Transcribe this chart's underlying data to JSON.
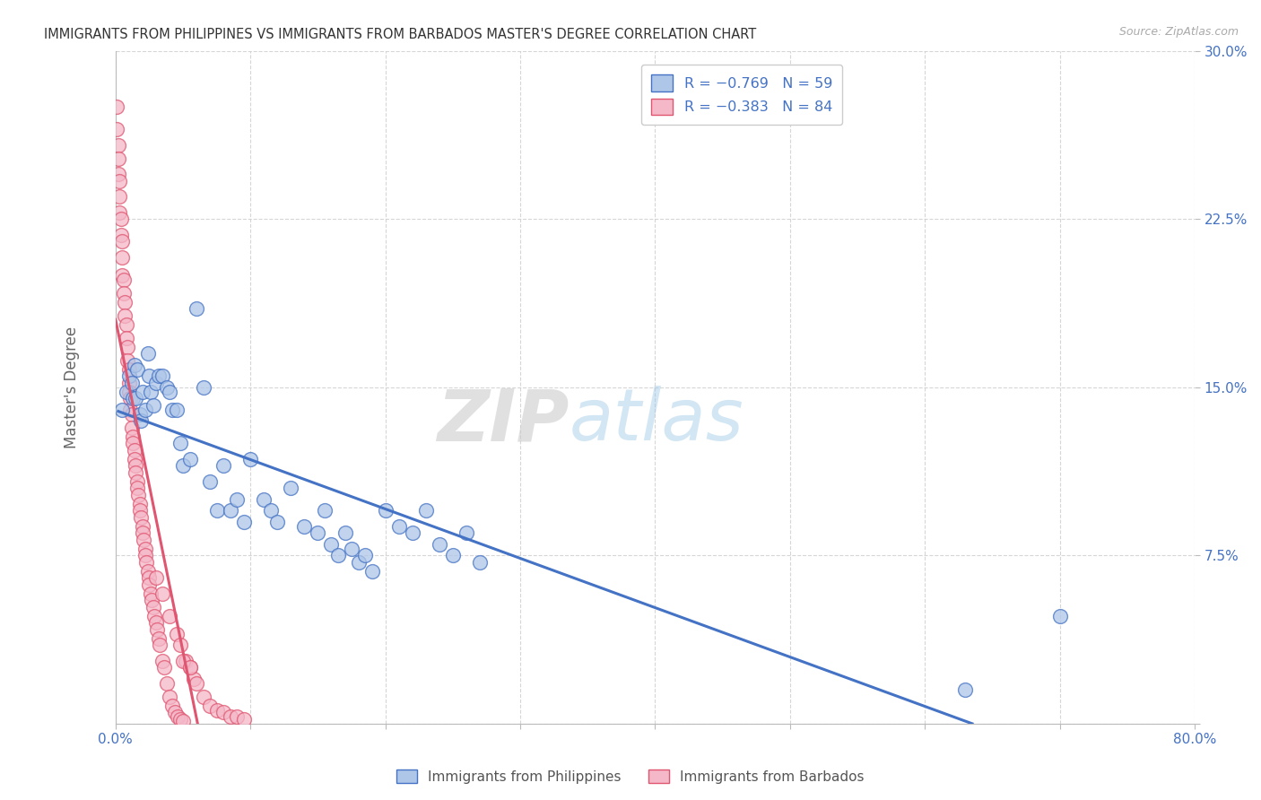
{
  "title": "IMMIGRANTS FROM PHILIPPINES VS IMMIGRANTS FROM BARBADOS MASTER'S DEGREE CORRELATION CHART",
  "source": "Source: ZipAtlas.com",
  "ylabel": "Master's Degree",
  "xlim": [
    0.0,
    0.8
  ],
  "ylim": [
    0.0,
    0.3
  ],
  "philippines_color": "#aec6e8",
  "philippines_edge_color": "#4472c4",
  "barbados_color": "#f4b8c8",
  "barbados_edge_color": "#e05570",
  "watermark_zip": "ZIP",
  "watermark_atlas": "atlas",
  "philippines_x": [
    0.005,
    0.008,
    0.01,
    0.012,
    0.013,
    0.014,
    0.015,
    0.016,
    0.018,
    0.019,
    0.02,
    0.022,
    0.024,
    0.025,
    0.026,
    0.028,
    0.03,
    0.032,
    0.035,
    0.038,
    0.04,
    0.042,
    0.045,
    0.048,
    0.05,
    0.055,
    0.06,
    0.065,
    0.07,
    0.075,
    0.08,
    0.085,
    0.09,
    0.095,
    0.1,
    0.11,
    0.115,
    0.12,
    0.13,
    0.14,
    0.15,
    0.155,
    0.16,
    0.165,
    0.17,
    0.175,
    0.18,
    0.185,
    0.19,
    0.2,
    0.21,
    0.22,
    0.23,
    0.24,
    0.25,
    0.26,
    0.27,
    0.63,
    0.7
  ],
  "philippines_y": [
    0.14,
    0.148,
    0.155,
    0.152,
    0.145,
    0.16,
    0.145,
    0.158,
    0.138,
    0.135,
    0.148,
    0.14,
    0.165,
    0.155,
    0.148,
    0.142,
    0.152,
    0.155,
    0.155,
    0.15,
    0.148,
    0.14,
    0.14,
    0.125,
    0.115,
    0.118,
    0.185,
    0.15,
    0.108,
    0.095,
    0.115,
    0.095,
    0.1,
    0.09,
    0.118,
    0.1,
    0.095,
    0.09,
    0.105,
    0.088,
    0.085,
    0.095,
    0.08,
    0.075,
    0.085,
    0.078,
    0.072,
    0.075,
    0.068,
    0.095,
    0.088,
    0.085,
    0.095,
    0.08,
    0.075,
    0.085,
    0.072,
    0.015,
    0.048
  ],
  "barbados_x": [
    0.001,
    0.001,
    0.002,
    0.002,
    0.002,
    0.003,
    0.003,
    0.003,
    0.004,
    0.004,
    0.005,
    0.005,
    0.005,
    0.006,
    0.006,
    0.007,
    0.007,
    0.008,
    0.008,
    0.009,
    0.009,
    0.01,
    0.01,
    0.01,
    0.011,
    0.011,
    0.012,
    0.012,
    0.013,
    0.013,
    0.014,
    0.014,
    0.015,
    0.015,
    0.016,
    0.016,
    0.017,
    0.018,
    0.018,
    0.019,
    0.02,
    0.02,
    0.021,
    0.022,
    0.022,
    0.023,
    0.024,
    0.025,
    0.025,
    0.026,
    0.027,
    0.028,
    0.029,
    0.03,
    0.031,
    0.032,
    0.033,
    0.035,
    0.036,
    0.038,
    0.04,
    0.042,
    0.044,
    0.046,
    0.048,
    0.05,
    0.052,
    0.055,
    0.058,
    0.06,
    0.065,
    0.07,
    0.075,
    0.08,
    0.085,
    0.09,
    0.095,
    0.03,
    0.035,
    0.04,
    0.045,
    0.048,
    0.05,
    0.055
  ],
  "barbados_y": [
    0.275,
    0.265,
    0.258,
    0.252,
    0.245,
    0.242,
    0.235,
    0.228,
    0.225,
    0.218,
    0.215,
    0.208,
    0.2,
    0.198,
    0.192,
    0.188,
    0.182,
    0.178,
    0.172,
    0.168,
    0.162,
    0.158,
    0.152,
    0.148,
    0.145,
    0.14,
    0.138,
    0.132,
    0.128,
    0.125,
    0.122,
    0.118,
    0.115,
    0.112,
    0.108,
    0.105,
    0.102,
    0.098,
    0.095,
    0.092,
    0.088,
    0.085,
    0.082,
    0.078,
    0.075,
    0.072,
    0.068,
    0.065,
    0.062,
    0.058,
    0.055,
    0.052,
    0.048,
    0.045,
    0.042,
    0.038,
    0.035,
    0.028,
    0.025,
    0.018,
    0.012,
    0.008,
    0.005,
    0.003,
    0.002,
    0.001,
    0.028,
    0.025,
    0.02,
    0.018,
    0.012,
    0.008,
    0.006,
    0.005,
    0.003,
    0.003,
    0.002,
    0.065,
    0.058,
    0.048,
    0.04,
    0.035,
    0.028,
    0.025
  ]
}
